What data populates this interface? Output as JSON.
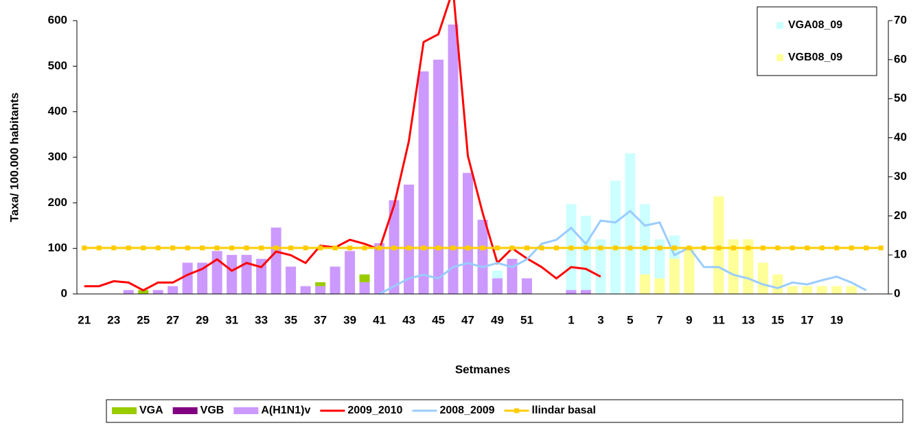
{
  "chart_data": {
    "type": "bar",
    "x_label": "Setmanes",
    "y_label": "Taxa/ 100.000 habitants",
    "categories": [
      "21",
      null,
      "23",
      null,
      "25",
      null,
      "27",
      null,
      "29",
      null,
      "31",
      null,
      "33",
      null,
      "35",
      null,
      "37",
      null,
      "39",
      null,
      "41",
      null,
      "43",
      null,
      "45",
      null,
      "47",
      null,
      "49",
      null,
      "51",
      null,
      null,
      "1",
      null,
      "3",
      null,
      "5",
      null,
      "7",
      null,
      "9",
      null,
      "11",
      null,
      "13",
      null,
      "15",
      null,
      "17",
      null,
      "19",
      null,
      null,
      null
    ],
    "ylim": [
      0,
      600
    ],
    "yticks": [
      0,
      100,
      200,
      300,
      400,
      500,
      600
    ],
    "y2lim": [
      0,
      70
    ],
    "y2ticks": [
      0,
      10,
      20,
      30,
      40,
      50,
      60,
      70
    ],
    "series": [
      {
        "name": "VGA",
        "type": "bar",
        "stack": true,
        "legend": "bottom",
        "axis": "y2",
        "color": "#99cc00",
        "values": [
          0,
          0,
          0,
          0,
          1,
          0,
          0,
          0,
          0,
          0,
          0,
          0,
          0,
          0,
          0,
          0,
          1,
          0,
          0,
          2,
          0,
          0,
          0,
          0,
          0,
          0,
          0,
          0,
          0,
          0,
          0,
          0,
          0,
          0,
          0,
          0,
          0,
          0,
          0,
          0,
          0,
          0,
          0,
          0,
          0,
          0,
          0,
          0,
          0,
          0,
          0,
          0,
          0,
          0,
          0
        ]
      },
      {
        "name": "VGB",
        "type": "bar",
        "stack": true,
        "legend": "bottom",
        "axis": "y2",
        "color": "#800080",
        "values": [
          0,
          0,
          0,
          0,
          0,
          0,
          0,
          0,
          0,
          0,
          0,
          0,
          0,
          0,
          0,
          0,
          0,
          0,
          0,
          0,
          0,
          0,
          0,
          0,
          0,
          0,
          0,
          0,
          0,
          0,
          0,
          0,
          0,
          0,
          0,
          0,
          0,
          0,
          0,
          0,
          0,
          0,
          0,
          0,
          0,
          0,
          0,
          0,
          0,
          0,
          0,
          0,
          0,
          0,
          0
        ]
      },
      {
        "name": "A(H1N1)v",
        "type": "bar",
        "stack": true,
        "legend": "bottom",
        "axis": "y2",
        "color": "#cc99ff",
        "values": [
          0,
          0,
          0,
          1,
          0,
          1,
          2,
          8,
          8,
          11,
          10,
          10,
          9,
          17,
          7,
          2,
          2,
          7,
          11,
          3,
          13,
          24,
          28,
          57,
          60,
          69,
          31,
          19,
          4,
          9,
          4,
          0,
          0,
          1,
          1,
          0,
          0,
          0,
          0,
          0,
          0,
          0,
          0,
          0,
          0,
          0,
          0,
          0,
          0,
          0,
          0,
          0,
          0,
          0,
          0
        ]
      },
      {
        "name": "2009_2010",
        "type": "line",
        "legend": "bottom",
        "color": "#ff0000",
        "values": [
          17,
          17,
          28,
          25,
          8,
          25,
          25,
          42,
          55,
          76,
          51,
          68,
          59,
          93,
          85,
          68,
          106,
          102,
          119,
          110,
          98,
          195,
          335,
          553,
          570,
          668,
          303,
          178,
          68,
          100,
          78,
          59,
          34,
          59,
          55,
          38,
          null,
          null,
          null,
          null,
          null,
          null,
          null,
          null,
          null,
          null,
          null,
          null,
          null,
          null,
          null,
          null,
          null,
          null,
          null
        ]
      },
      {
        "name": "2008_2009",
        "type": "line",
        "legend": "bottom",
        "color": "#99ccff",
        "values": [
          null,
          null,
          null,
          null,
          null,
          null,
          null,
          null,
          null,
          null,
          null,
          null,
          null,
          null,
          null,
          null,
          null,
          null,
          null,
          null,
          0,
          17,
          34,
          42,
          34,
          59,
          68,
          59,
          68,
          59,
          76,
          110,
          119,
          145,
          110,
          161,
          157,
          182,
          150,
          157,
          85,
          102,
          59,
          59,
          42,
          34,
          21,
          13,
          25,
          21,
          30,
          38,
          25,
          8,
          null
        ]
      },
      {
        "name": "llindar basal",
        "type": "line",
        "marker": "square",
        "legend": "bottom",
        "color": "#ffcc00",
        "values": [
          101,
          101,
          101,
          101,
          101,
          101,
          101,
          101,
          101,
          101,
          101,
          101,
          101,
          101,
          101,
          101,
          101,
          101,
          101,
          101,
          101,
          101,
          101,
          101,
          101,
          101,
          101,
          101,
          101,
          101,
          101,
          101,
          101,
          101,
          101,
          101,
          101,
          101,
          101,
          101,
          101,
          101,
          101,
          101,
          101,
          101,
          101,
          101,
          101,
          101,
          101,
          101,
          101,
          101,
          101
        ]
      },
      {
        "name": "VGA08_09",
        "type": "bar",
        "stack": false,
        "legend": "top-right",
        "axis": "y2",
        "color": "#ccffff",
        "values": [
          0,
          0,
          0,
          0,
          0,
          0,
          0,
          0,
          0,
          0,
          0,
          0,
          0,
          0,
          0,
          0,
          0,
          0,
          0,
          0,
          0,
          0,
          0,
          0,
          0,
          0,
          0,
          0,
          6,
          0,
          0,
          0,
          0,
          23,
          20,
          14,
          29,
          36,
          23,
          14,
          15,
          0,
          0,
          0,
          0,
          0,
          0,
          0,
          0,
          0,
          0,
          0,
          0,
          0,
          0
        ]
      },
      {
        "name": "VGB08_09",
        "type": "bar",
        "stack": false,
        "legend": "top-right",
        "axis": "y2",
        "color": "#ffff99",
        "values": [
          0,
          0,
          0,
          0,
          0,
          0,
          0,
          0,
          0,
          0,
          0,
          0,
          0,
          0,
          0,
          0,
          0,
          0,
          0,
          0,
          0,
          0,
          0,
          3,
          4,
          0,
          0,
          0,
          0,
          0,
          0,
          0,
          0,
          0,
          0,
          0,
          0,
          0,
          5,
          4,
          9,
          12,
          0,
          25,
          14,
          14,
          8,
          5,
          2,
          2,
          2,
          2,
          2,
          0,
          0
        ]
      }
    ]
  }
}
